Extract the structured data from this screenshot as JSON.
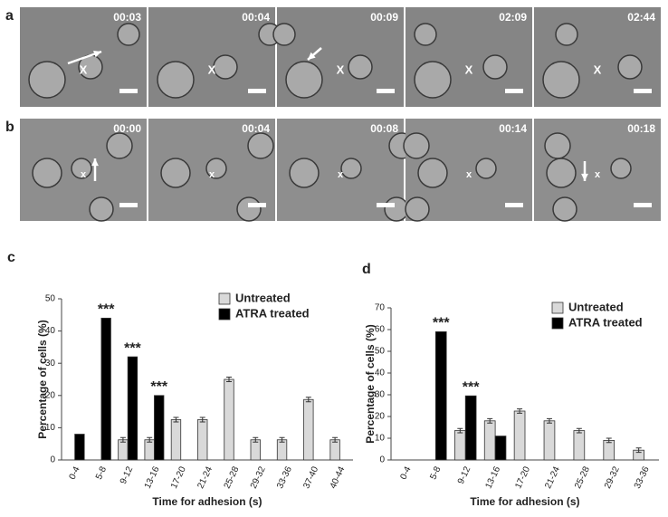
{
  "panels": [
    {
      "label": "a",
      "frames": [
        {
          "time": "00:03",
          "marker": "X"
        },
        {
          "time": "00:04",
          "marker": "X"
        },
        {
          "time": "00:09",
          "marker": "X"
        },
        {
          "time": "02:09",
          "marker": "X"
        },
        {
          "time": "02:44",
          "marker": "X"
        }
      ]
    },
    {
      "label": "b",
      "frames": [
        {
          "time": "00:00",
          "marker": "x"
        },
        {
          "time": "00:04",
          "marker": "x"
        },
        {
          "time": "00:08",
          "marker": "x"
        },
        {
          "time": "00:14",
          "marker": "x"
        },
        {
          "time": "00:18",
          "marker": "x"
        }
      ]
    }
  ],
  "chart_data": [
    {
      "type": "bar",
      "panel_label": "c",
      "y_label": "Percentage of cells (%)",
      "x_label": "Time for adhesion (s)",
      "categories": [
        "0-4",
        "5-8",
        "9-12",
        "13-16",
        "17-20",
        "21-24",
        "25-28",
        "29-32",
        "33-36",
        "37-40",
        "40-44"
      ],
      "series": [
        {
          "name": "Untreated",
          "color": "#d9d9d9",
          "values": [
            null,
            null,
            6.25,
            6.25,
            12.5,
            12.5,
            25,
            6.25,
            6.25,
            18.75,
            6.25
          ],
          "errors": [
            null,
            null,
            0.7,
            0.7,
            0.7,
            0.7,
            0.7,
            0.7,
            0.7,
            0.7,
            0.7
          ]
        },
        {
          "name": "ATRA treated",
          "color": "#000000",
          "values": [
            8,
            44,
            32,
            20,
            null,
            null,
            null,
            null,
            null,
            null,
            null
          ],
          "significance": [
            null,
            "***",
            "***",
            "***",
            null,
            null,
            null,
            null,
            null,
            null,
            null
          ]
        }
      ],
      "ylim": [
        0,
        50
      ],
      "yticks": [
        0,
        10,
        20,
        30,
        40,
        50
      ]
    },
    {
      "type": "bar",
      "panel_label": "d",
      "y_label": "Percentage of cells (%)",
      "x_label": "Time for adhesion (s)",
      "categories": [
        "0-4",
        "5-8",
        "9-12",
        "13-16",
        "17-20",
        "21-24",
        "25-28",
        "29-32",
        "33-36"
      ],
      "series": [
        {
          "name": "Untreated",
          "color": "#d9d9d9",
          "values": [
            null,
            null,
            13.5,
            18,
            22.5,
            18,
            13.5,
            9,
            4.5
          ],
          "errors": [
            null,
            null,
            1,
            1,
            1,
            1,
            1,
            1,
            1
          ]
        },
        {
          "name": "ATRA treated",
          "color": "#000000",
          "values": [
            null,
            59,
            29.5,
            11,
            null,
            null,
            null,
            null,
            null
          ],
          "significance": [
            null,
            "***",
            "***",
            null,
            null,
            null,
            null,
            null,
            null
          ]
        }
      ],
      "ylim": [
        0,
        70
      ],
      "yticks": [
        0,
        10,
        20,
        30,
        40,
        50,
        60,
        70
      ]
    }
  ]
}
